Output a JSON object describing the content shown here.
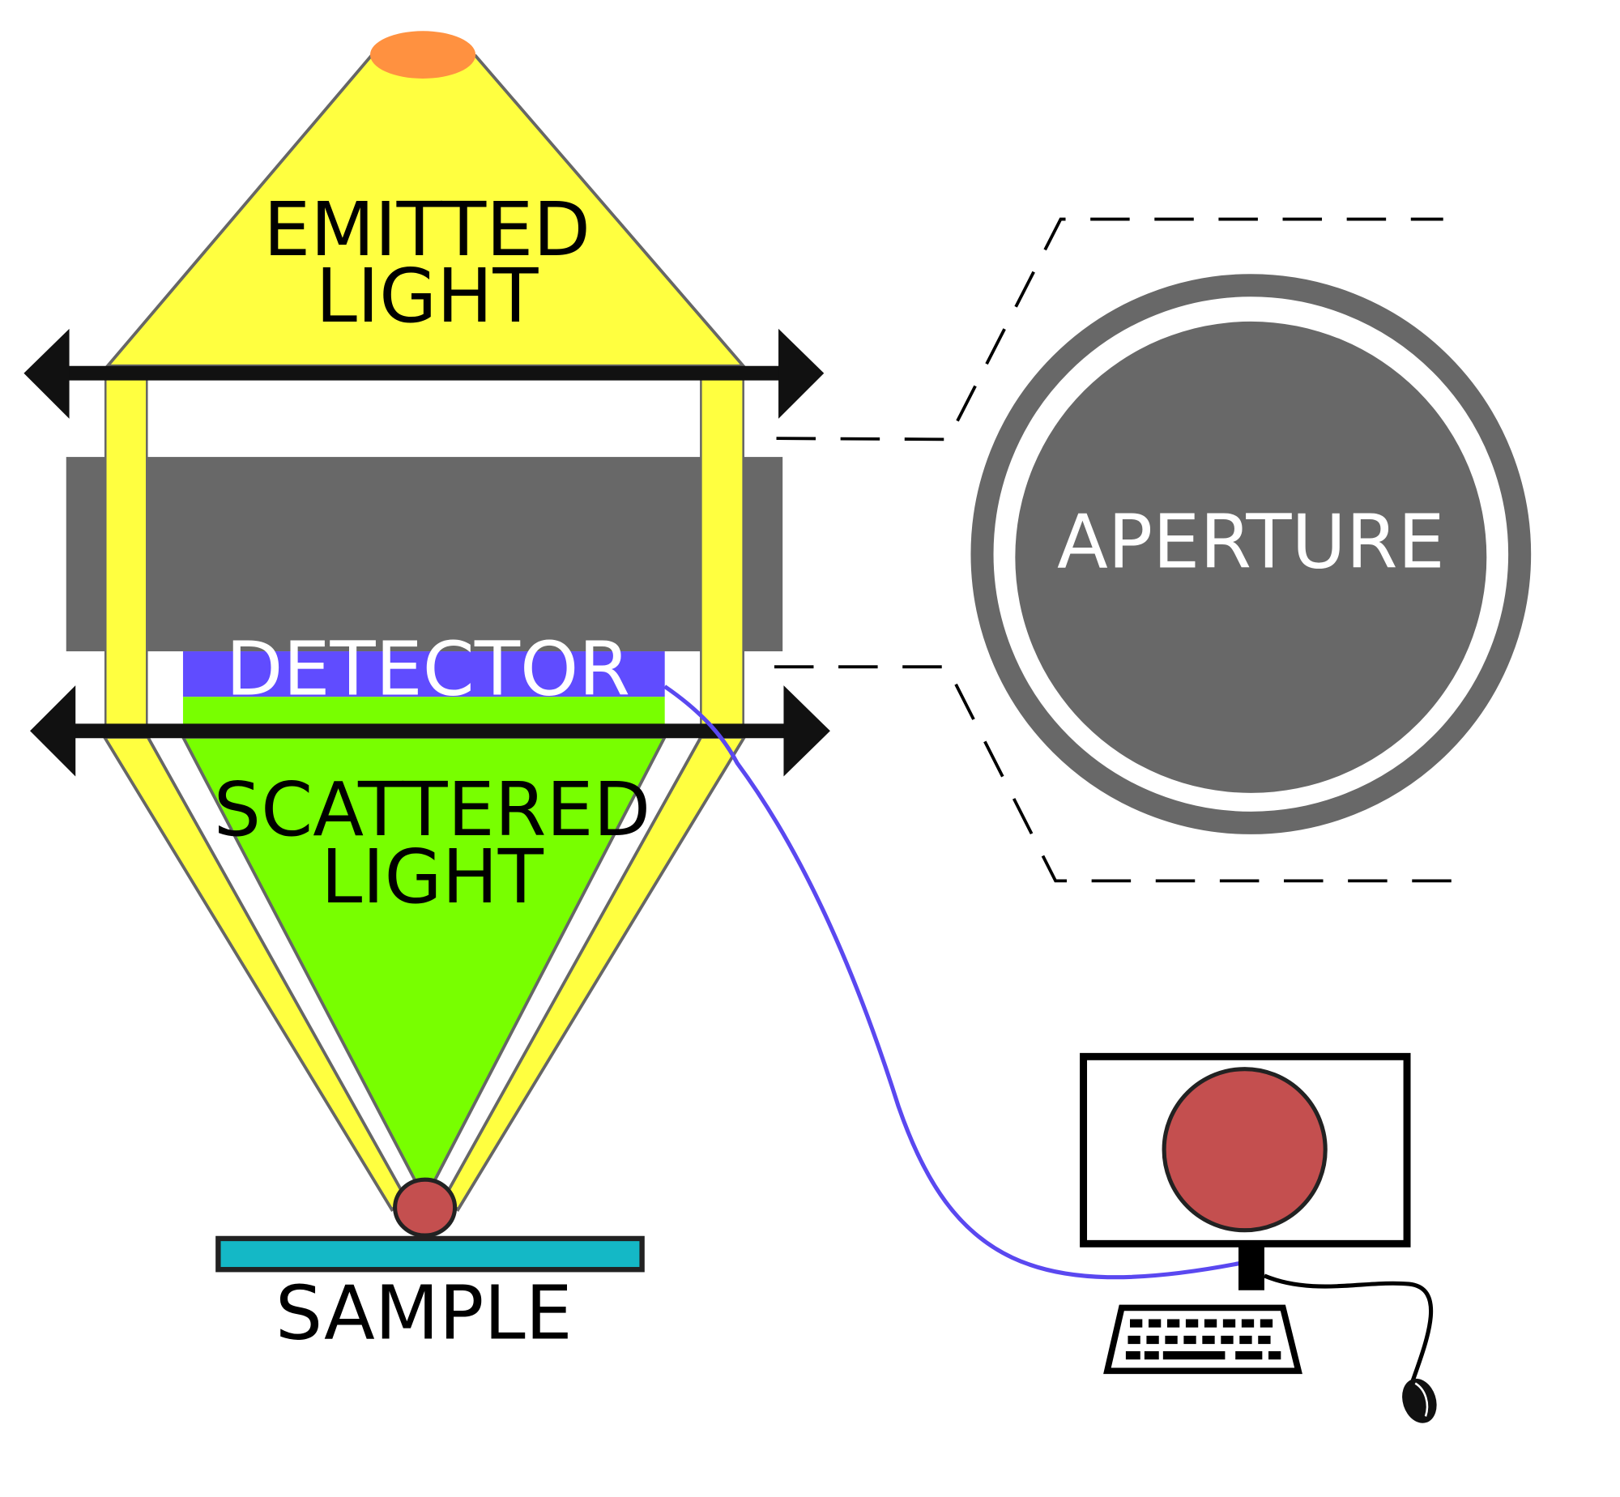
{
  "labels": {
    "emitted_line1": "EMITTED",
    "emitted_line2": "LIGHT",
    "aperture": "APERTURE",
    "detector": "DETECTOR",
    "scattered_line1": "SCATTERED",
    "scattered_line2": "LIGHT",
    "sample": "SAMPLE"
  },
  "colors": {
    "emitted_light": "#ffff40",
    "light_source": "#ff9140",
    "aperture_block": "#686868",
    "detector": "#604cff",
    "scattered_light": "#78ff00",
    "specimen": "#c44f4f",
    "sample_slide": "#14b8c6",
    "signal_cable": "#5a48f0",
    "arrows": "#111111",
    "outline": "#666666"
  }
}
